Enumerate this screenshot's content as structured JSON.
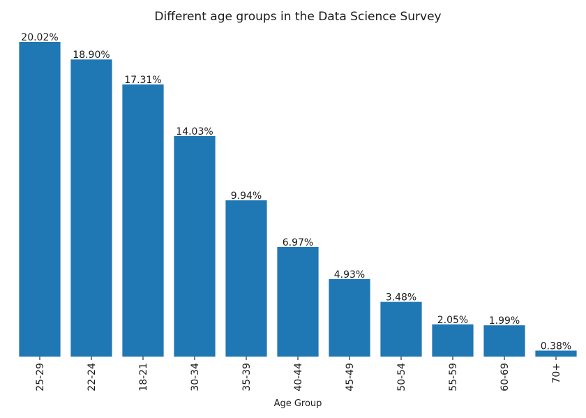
{
  "chart_data": {
    "type": "bar",
    "title": "Different age groups in the Data Science Survey",
    "xlabel": "Age Group",
    "ylabel": "",
    "categories": [
      "25-29",
      "22-24",
      "18-21",
      "30-34",
      "35-39",
      "40-44",
      "45-49",
      "50-54",
      "55-59",
      "60-69",
      "70+"
    ],
    "values": [
      20.02,
      18.9,
      17.31,
      14.03,
      9.94,
      6.97,
      4.93,
      3.48,
      2.05,
      1.99,
      0.38
    ],
    "data_labels": [
      "20.02%",
      "18.90%",
      "17.31%",
      "14.03%",
      "9.94%",
      "6.97%",
      "4.93%",
      "3.48%",
      "2.05%",
      "1.99%",
      "0.38%"
    ],
    "ylim": [
      0,
      21
    ],
    "y_axis_visible": false,
    "grid": false,
    "legend": "none",
    "colors": {
      "bar": "#1f77b4",
      "text": "#1a1a1a",
      "axis": "#000000"
    }
  }
}
